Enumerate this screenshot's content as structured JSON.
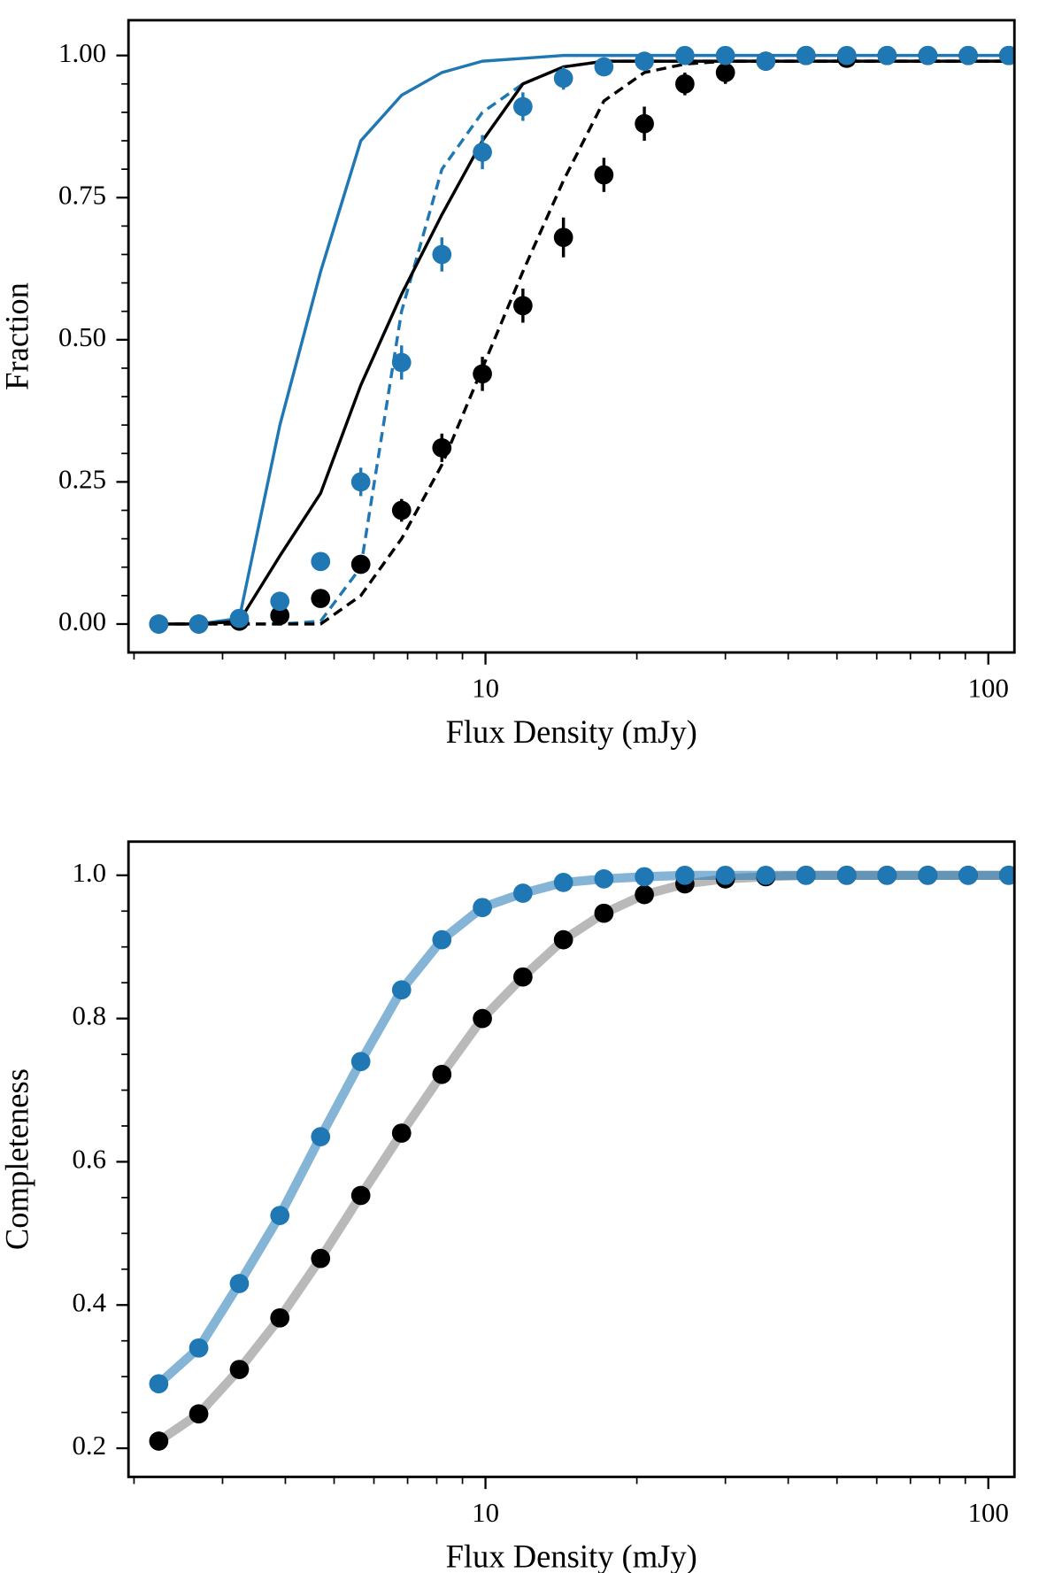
{
  "chart_data": [
    {
      "type": "line",
      "xlabel": "Flux Density (mJy)",
      "ylabel": "Fraction",
      "xscale": "log",
      "xlim": [
        1.95,
        112.7
      ],
      "ylim": [
        -0.05,
        1.062
      ],
      "xticks": [
        10,
        100
      ],
      "xminorticks": [
        2,
        3,
        4,
        5,
        6,
        7,
        8,
        9,
        20,
        30,
        40,
        50,
        60,
        70,
        80,
        90
      ],
      "yticks": [
        {
          "value": 0,
          "label": "0.00"
        },
        {
          "value": 0.25,
          "label": "0.25"
        },
        {
          "value": 0.5,
          "label": "0.50"
        },
        {
          "value": 0.75,
          "label": "0.75"
        },
        {
          "value": 1,
          "label": "1.00"
        }
      ],
      "yminorticks": [
        0.05,
        0.1,
        0.15,
        0.2,
        0.3,
        0.35,
        0.4,
        0.45,
        0.55,
        0.6,
        0.65,
        0.7,
        0.8,
        0.85,
        0.9,
        0.95
      ],
      "x": [
        2.24,
        2.69,
        3.24,
        3.9,
        4.7,
        5.65,
        6.81,
        8.19,
        9.86,
        11.87,
        14.29,
        17.2,
        20.7,
        24.92,
        30.0,
        36.1,
        43.4,
        52.3,
        62.9,
        75.8,
        91.2,
        109.8
      ],
      "series": [
        {
          "style": "solid",
          "color": "#1f77b4",
          "values": [
            0,
            0,
            0.01,
            0.35,
            0.62,
            0.85,
            0.93,
            0.97,
            0.99,
            0.995,
            1,
            1,
            1,
            1,
            1,
            1,
            1,
            1,
            1,
            1,
            1,
            1
          ]
        },
        {
          "style": "dashed",
          "color": "#1f77b4",
          "values": [
            0,
            0,
            0,
            0,
            0.005,
            0.1,
            0.55,
            0.8,
            0.9,
            0.95,
            0.98,
            0.99,
            0.99,
            0.99,
            0.99,
            0.99,
            0.99,
            0.99,
            0.99,
            0.99,
            0.99,
            0.99
          ]
        },
        {
          "style": "solid",
          "color": "#000000",
          "values": [
            0,
            0,
            0.005,
            0.12,
            0.23,
            0.42,
            0.58,
            0.72,
            0.85,
            0.95,
            0.98,
            0.99,
            0.99,
            0.99,
            0.99,
            0.99,
            0.99,
            0.99,
            0.99,
            0.99,
            0.99,
            0.99
          ]
        },
        {
          "style": "dashed",
          "color": "#000000",
          "values": [
            0,
            0,
            0,
            0,
            0,
            0.05,
            0.15,
            0.28,
            0.45,
            0.62,
            0.78,
            0.92,
            0.97,
            0.985,
            0.99,
            0.99,
            0.99,
            0.99,
            0.99,
            0.99,
            0.99,
            0.99
          ]
        },
        {
          "style": "points",
          "color": "#000000",
          "values": [
            0,
            0,
            0.005,
            0.015,
            0.045,
            0.105,
            0.2,
            0.31,
            0.44,
            0.56,
            0.68,
            0.79,
            0.88,
            0.95,
            0.97,
            0.99,
            1,
            0.995,
            1,
            1,
            1,
            1
          ],
          "errors": [
            0.004,
            0.004,
            0.006,
            0.01,
            0.012,
            0.015,
            0.02,
            0.025,
            0.03,
            0.03,
            0.035,
            0.03,
            0.03,
            0.02,
            0.02,
            0.01,
            0.008,
            0.008,
            0.005,
            0.005,
            0.005,
            0.005
          ]
        },
        {
          "style": "points",
          "color": "#1f77b4",
          "values": [
            0,
            0,
            0.01,
            0.04,
            0.11,
            0.25,
            0.46,
            0.65,
            0.83,
            0.91,
            0.96,
            0.98,
            0.99,
            1,
            1,
            0.99,
            1,
            1,
            1,
            1,
            1,
            1
          ],
          "errors": [
            0.004,
            0.004,
            0.008,
            0.012,
            0.015,
            0.025,
            0.03,
            0.03,
            0.03,
            0.025,
            0.02,
            0.015,
            0.01,
            0.008,
            0.006,
            0.006,
            0.005,
            0.005,
            0.005,
            0.005,
            0.005,
            0.005
          ]
        }
      ]
    },
    {
      "type": "line",
      "xlabel": "Flux Density (mJy)",
      "ylabel": "Completeness",
      "xscale": "log",
      "xlim": [
        1.95,
        112.7
      ],
      "ylim": [
        0.16,
        1.047
      ],
      "xticks": [
        10,
        100
      ],
      "xminorticks": [
        2,
        3,
        4,
        5,
        6,
        7,
        8,
        9,
        20,
        30,
        40,
        50,
        60,
        70,
        80,
        90
      ],
      "yticks": [
        0.2,
        0.4,
        0.6,
        0.8,
        {
          "value": 1,
          "label": "1.0"
        }
      ],
      "yminorticks": [
        0.25,
        0.3,
        0.35,
        0.45,
        0.5,
        0.55,
        0.65,
        0.7,
        0.75,
        0.85,
        0.9,
        0.95
      ],
      "x": [
        2.24,
        2.69,
        3.24,
        3.9,
        4.7,
        5.65,
        6.81,
        8.19,
        9.86,
        11.87,
        14.29,
        17.2,
        20.7,
        24.92,
        30.0,
        36.1,
        43.4,
        52.3,
        62.9,
        75.8,
        91.2,
        109.8
      ],
      "series": [
        {
          "style": "band",
          "color": "#808080",
          "values": [
            0.21,
            0.248,
            0.31,
            0.382,
            0.465,
            0.553,
            0.64,
            0.722,
            0.8,
            0.858,
            0.91,
            0.947,
            0.973,
            0.988,
            0.995,
            0.998,
            1,
            1,
            1,
            1,
            1,
            1
          ]
        },
        {
          "style": "band",
          "color": "#1f77b4",
          "values": [
            0.29,
            0.34,
            0.43,
            0.525,
            0.635,
            0.74,
            0.84,
            0.91,
            0.955,
            0.975,
            0.99,
            0.995,
            0.998,
            1,
            1,
            1,
            1,
            1,
            1,
            1,
            1,
            1
          ]
        },
        {
          "style": "points",
          "color": "#000000",
          "values": [
            0.21,
            0.248,
            0.31,
            0.382,
            0.465,
            0.553,
            0.64,
            0.722,
            0.8,
            0.858,
            0.91,
            0.947,
            0.973,
            0.988,
            0.995,
            0.998,
            1,
            1,
            1,
            1,
            1,
            1
          ]
        },
        {
          "style": "points",
          "color": "#1f77b4",
          "values": [
            0.29,
            0.34,
            0.43,
            0.525,
            0.635,
            0.74,
            0.84,
            0.91,
            0.955,
            0.975,
            0.99,
            0.995,
            0.998,
            1,
            1,
            1,
            1,
            1,
            1,
            1,
            1,
            1
          ]
        }
      ]
    }
  ]
}
